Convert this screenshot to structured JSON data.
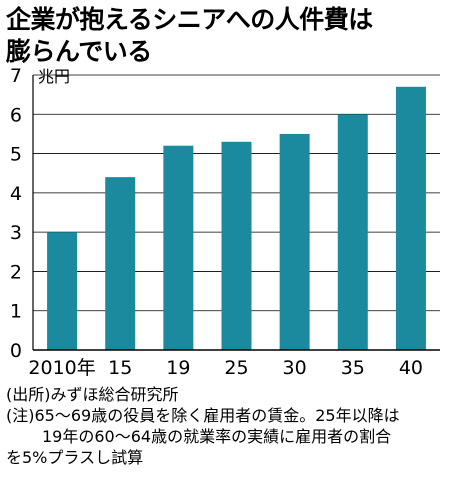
{
  "title_lines": [
    "企業が抱えるシニアへの人件費は",
    "膨らんでいる"
  ],
  "colors": {
    "bar": "#1b8a9e",
    "axis": "#000000",
    "grid": "#000000"
  },
  "chart_data": {
    "type": "bar",
    "categories": [
      "2010年",
      "15",
      "19",
      "25",
      "30",
      "35",
      "40"
    ],
    "values": [
      3.0,
      4.4,
      5.2,
      5.3,
      5.5,
      6.0,
      6.7
    ],
    "unit": "兆円",
    "ylim": [
      0,
      7
    ],
    "yticks": [
      "0",
      "1",
      "2",
      "3",
      "4",
      "5",
      "6",
      "7"
    ],
    "grid": true,
    "legend": "none"
  },
  "notes": {
    "source": "(出所)みずほ総合研究所",
    "note_line1": "(注)65～69歳の役員を除く雇用者の賃金。25年以降は",
    "note_line2": "19年の60～64歳の就業率の実績に雇用者の割合",
    "note_line3": "を5%プラスし試算"
  }
}
